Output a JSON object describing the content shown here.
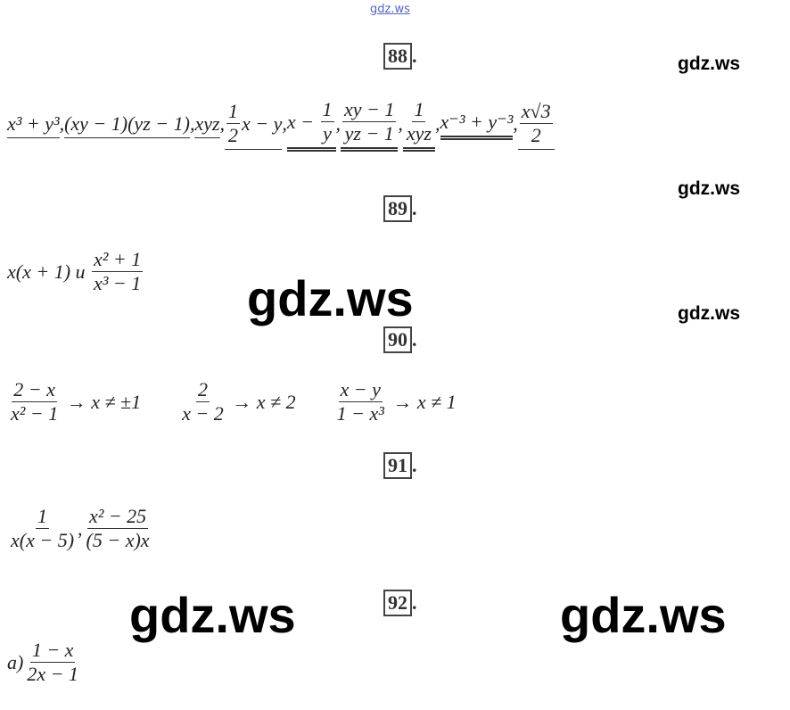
{
  "header": {
    "link": "gdz.ws"
  },
  "watermarks": [
    "gdz.ws",
    "gdz.ws",
    "gdz.ws",
    "gdz.ws",
    "gdz.ws",
    "gdz.ws"
  ],
  "problems": [
    {
      "number": "88",
      "dot": ".",
      "items": [
        {
          "parts": [
            {
              "t": "x³ + y³"
            }
          ],
          "underline": 1
        },
        {
          "parts": [
            {
              "t": ","
            }
          ]
        },
        {
          "parts": [
            {
              "t": "(xy − 1)(yz − 1)"
            }
          ],
          "underline": 1
        },
        {
          "parts": [
            {
              "t": ","
            }
          ]
        },
        {
          "parts": [
            {
              "t": "xyz"
            }
          ],
          "underline": 1
        },
        {
          "parts": [
            {
              "t": ","
            }
          ]
        },
        {
          "parts": [
            {
              "num": "1",
              "den": "2"
            },
            {
              "t": "x − y"
            }
          ],
          "underline": 1
        },
        {
          "parts": [
            {
              "t": ","
            }
          ]
        },
        {
          "parts": [
            {
              "t": "x − "
            },
            {
              "num": "1",
              "den": "y"
            }
          ],
          "underline": 2
        },
        {
          "parts": [
            {
              "t": ","
            }
          ]
        },
        {
          "parts": [
            {
              "num": "xy − 1",
              "den": "yz − 1"
            }
          ],
          "underline": 2
        },
        {
          "parts": [
            {
              "t": ","
            }
          ]
        },
        {
          "parts": [
            {
              "num": "1",
              "den": "xyz"
            }
          ],
          "underline": 2
        },
        {
          "parts": [
            {
              "t": ","
            }
          ]
        },
        {
          "parts": [
            {
              "t": "x⁻³ + y⁻³"
            }
          ],
          "underline": 2
        },
        {
          "parts": [
            {
              "t": ","
            }
          ]
        },
        {
          "parts": [
            {
              "num": "x√3",
              "den": "2"
            }
          ],
          "underline": 1
        }
      ]
    },
    {
      "number": "89",
      "dot": ".",
      "items": [
        {
          "parts": [
            {
              "t": "x(x + 1) и "
            },
            {
              "num": "x² + 1",
              "den": "x³ − 1"
            }
          ]
        }
      ]
    },
    {
      "number": "90",
      "dot": ".",
      "items": [
        {
          "parts": [
            {
              "num": "2 − x",
              "den": "x² − 1"
            },
            {
              "t": " → x ≠ ±1"
            }
          ]
        },
        {
          "parts": [
            {
              "num": "2",
              "den": "x − 2"
            },
            {
              "t": " → x ≠ 2"
            }
          ]
        },
        {
          "parts": [
            {
              "num": "x − y",
              "den": "1 − x³"
            },
            {
              "t": " → x ≠ 1"
            }
          ]
        }
      ]
    },
    {
      "number": "91",
      "dot": ".",
      "items": [
        {
          "parts": [
            {
              "num": "1",
              "den": "x(x − 5)"
            },
            {
              "t": ","
            },
            {
              "num": "x² − 25",
              "den": "(5 − x)x"
            }
          ]
        }
      ]
    },
    {
      "number": "92",
      "dot": ".",
      "items": [
        {
          "parts": [
            {
              "t": "а)"
            },
            {
              "num": "1 − x",
              "den": "2x − 1"
            }
          ]
        }
      ]
    }
  ]
}
